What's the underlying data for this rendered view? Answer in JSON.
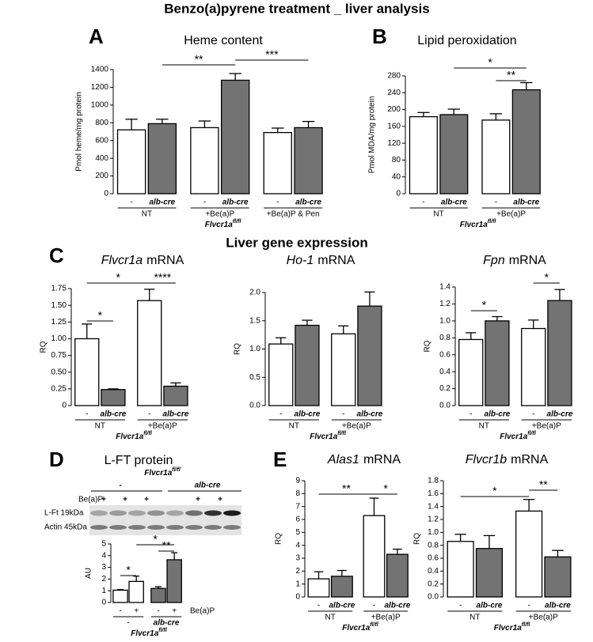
{
  "figure": {
    "title": "Benzo(a)pyrene treatment _ liver analysis",
    "section_title": "Liver gene expression",
    "panel_letters": [
      "A",
      "B",
      "C",
      "D",
      "E"
    ]
  },
  "blot": {
    "genotype": "Flvcr1a",
    "genotype_sup": "fl/fl",
    "groups": [
      "-",
      "alb-cre"
    ],
    "treatment": "Be(a)P",
    "mark": "+",
    "rows": [
      "L-Ft 19kDa",
      "Actin 45kDa"
    ]
  },
  "chart_data": [
    {
      "type": "bar",
      "title": "Heme content",
      "ylabel": "Pmol heme/mg protein",
      "categories": [
        "NT",
        "+Be(a)P",
        "+Be(a)P & Pen"
      ],
      "genotype": "Flvcr1a",
      "genotype_sup": "fl/fl",
      "series": [
        {
          "name": "-",
          "color": "#ffffff",
          "values": [
            720,
            745,
            690
          ],
          "errors": [
            120,
            75,
            50
          ]
        },
        {
          "name": "alb-cre",
          "color": "#737373",
          "values": [
            790,
            1280,
            745
          ],
          "errors": [
            50,
            75,
            70
          ]
        }
      ],
      "ylim": [
        0,
        1400
      ],
      "yticks": [
        0,
        200,
        400,
        600,
        800,
        1000,
        1200,
        1400
      ],
      "significance": [
        "**",
        "***"
      ]
    },
    {
      "type": "bar",
      "title": "Lipid peroxidation",
      "ylabel": "Pmol MDA/mg protein",
      "categories": [
        "NT",
        "+Be(a)P"
      ],
      "genotype": "Flvcr1a",
      "genotype_sup": "fl/fl",
      "series": [
        {
          "name": "-",
          "color": "#ffffff",
          "values": [
            183,
            175
          ],
          "errors": [
            10,
            15
          ]
        },
        {
          "name": "alb-cre",
          "color": "#737373",
          "values": [
            188,
            247
          ],
          "errors": [
            13,
            17
          ]
        }
      ],
      "ylim": [
        0,
        280
      ],
      "yticks": [
        0,
        40,
        80,
        120,
        160,
        200,
        240,
        280
      ],
      "significance": [
        "*",
        "**"
      ]
    },
    {
      "type": "bar",
      "gene": "Flvcr1a",
      "title": "mRNA",
      "ylabel": "RQ",
      "categories": [
        "NT",
        "+Be(a)P"
      ],
      "genotype": "Flvcr1a",
      "genotype_sup": "fl/fl",
      "series": [
        {
          "name": "-",
          "color": "#ffffff",
          "values": [
            1.0,
            1.57
          ],
          "errors": [
            0.22,
            0.17
          ]
        },
        {
          "name": "alb-cre",
          "color": "#737373",
          "values": [
            0.24,
            0.29
          ],
          "errors": [
            0.01,
            0.05
          ]
        }
      ],
      "ylim": [
        0,
        1.75
      ],
      "yticks": [
        0,
        0.25,
        {
          "value": 0.5,
          "label": "0.50"
        },
        0.75,
        {
          "value": 1,
          "label": "1.00"
        },
        1.25,
        {
          "value": 1.5,
          "label": "1.50"
        },
        1.75
      ],
      "significance": [
        "*",
        "*",
        "****"
      ]
    },
    {
      "type": "bar",
      "gene": "Ho-1",
      "title": "mRNA",
      "ylabel": "RQ",
      "categories": [
        "NT",
        "+Be(a)P"
      ],
      "genotype": "Flvcr1a",
      "genotype_sup": "fl/fl",
      "series": [
        {
          "name": "-",
          "color": "#ffffff",
          "values": [
            1.09,
            1.27
          ],
          "errors": [
            0.11,
            0.14
          ]
        },
        {
          "name": "alb-cre",
          "color": "#737373",
          "values": [
            1.42,
            1.76
          ],
          "errors": [
            0.09,
            0.25
          ]
        }
      ],
      "ylim": [
        0,
        2
      ],
      "yticks": [
        {
          "value": 0,
          "label": "0.0"
        },
        0.5,
        {
          "value": 1,
          "label": "1.0"
        },
        1.5,
        {
          "value": 2,
          "label": "2.0"
        }
      ],
      "significance": []
    },
    {
      "type": "bar",
      "gene": "Fpn",
      "title": "mRNA",
      "ylabel": "RQ",
      "categories": [
        "NT",
        "+Be(a)P"
      ],
      "genotype": "Flvcr1a",
      "genotype_sup": "fl/fl",
      "series": [
        {
          "name": "-",
          "color": "#ffffff",
          "values": [
            0.78,
            0.91
          ],
          "errors": [
            0.08,
            0.1
          ]
        },
        {
          "name": "alb-cre",
          "color": "#737373",
          "values": [
            1.0,
            1.24
          ],
          "errors": [
            0.05,
            0.13
          ]
        }
      ],
      "ylim": [
        0,
        1.4
      ],
      "yticks": [
        {
          "value": 0,
          "label": "0.0"
        },
        0.2,
        0.4,
        0.6,
        0.8,
        {
          "value": 1,
          "label": "1.0"
        },
        1.2,
        1.4
      ],
      "significance": [
        "*",
        "*"
      ]
    },
    {
      "type": "bar",
      "title": "L-FT protein",
      "ylabel": "AU",
      "categories": [
        "-",
        "alb-cre"
      ],
      "genotype": "Flvcr1a",
      "genotype_sup": "fl/fl",
      "treatment": "Be(a)P",
      "group_colors": [
        "#ffffff",
        "#737373"
      ],
      "series": [
        {
          "name": "-",
          "values": [
            1.05,
            1.2
          ],
          "errors": [
            0.05,
            0.15
          ]
        },
        {
          "name": "+",
          "values": [
            1.8,
            3.65
          ],
          "errors": [
            0.45,
            0.6
          ]
        }
      ],
      "ylim": [
        0,
        5
      ],
      "yticks": [
        0,
        1,
        2,
        3,
        4,
        5
      ],
      "significance": [
        "*",
        "*",
        "**"
      ]
    },
    {
      "type": "bar",
      "gene": "Alas1",
      "title": "mRNA",
      "ylabel": "RQ",
      "categories": [
        "NT",
        "+Be(a)P"
      ],
      "genotype": "Flvcr1a",
      "genotype_sup": "fl/fl",
      "series": [
        {
          "name": "-",
          "color": "#ffffff",
          "values": [
            1.4,
            6.3
          ],
          "errors": [
            0.55,
            1.35
          ]
        },
        {
          "name": "alb-cre",
          "color": "#737373",
          "values": [
            1.6,
            3.3
          ],
          "errors": [
            0.45,
            0.4
          ]
        }
      ],
      "ylim": [
        0,
        9
      ],
      "yticks": [
        0,
        1,
        2,
        3,
        4,
        5,
        6,
        7,
        8,
        9
      ],
      "significance": [
        "**",
        "*"
      ]
    },
    {
      "type": "bar",
      "gene": "Flvcr1b",
      "title": "mRNA",
      "ylabel": "RQ",
      "categories": [
        "NT",
        "+Be(a)P"
      ],
      "genotype": "Flvcr1a",
      "genotype_sup": "fl/fl",
      "series": [
        {
          "name": "-",
          "color": "#ffffff",
          "values": [
            0.86,
            1.33
          ],
          "errors": [
            0.11,
            0.18
          ]
        },
        {
          "name": "alb-cre",
          "color": "#737373",
          "values": [
            0.75,
            0.62
          ],
          "errors": [
            0.2,
            0.1
          ]
        }
      ],
      "ylim": [
        0,
        1.8
      ],
      "yticks": [
        {
          "value": 0,
          "label": "0.0"
        },
        0.2,
        0.4,
        0.6,
        0.8,
        {
          "value": 1,
          "label": "1.0"
        },
        1.2,
        1.4,
        1.6,
        1.8
      ],
      "significance": [
        "*",
        "**"
      ]
    }
  ]
}
